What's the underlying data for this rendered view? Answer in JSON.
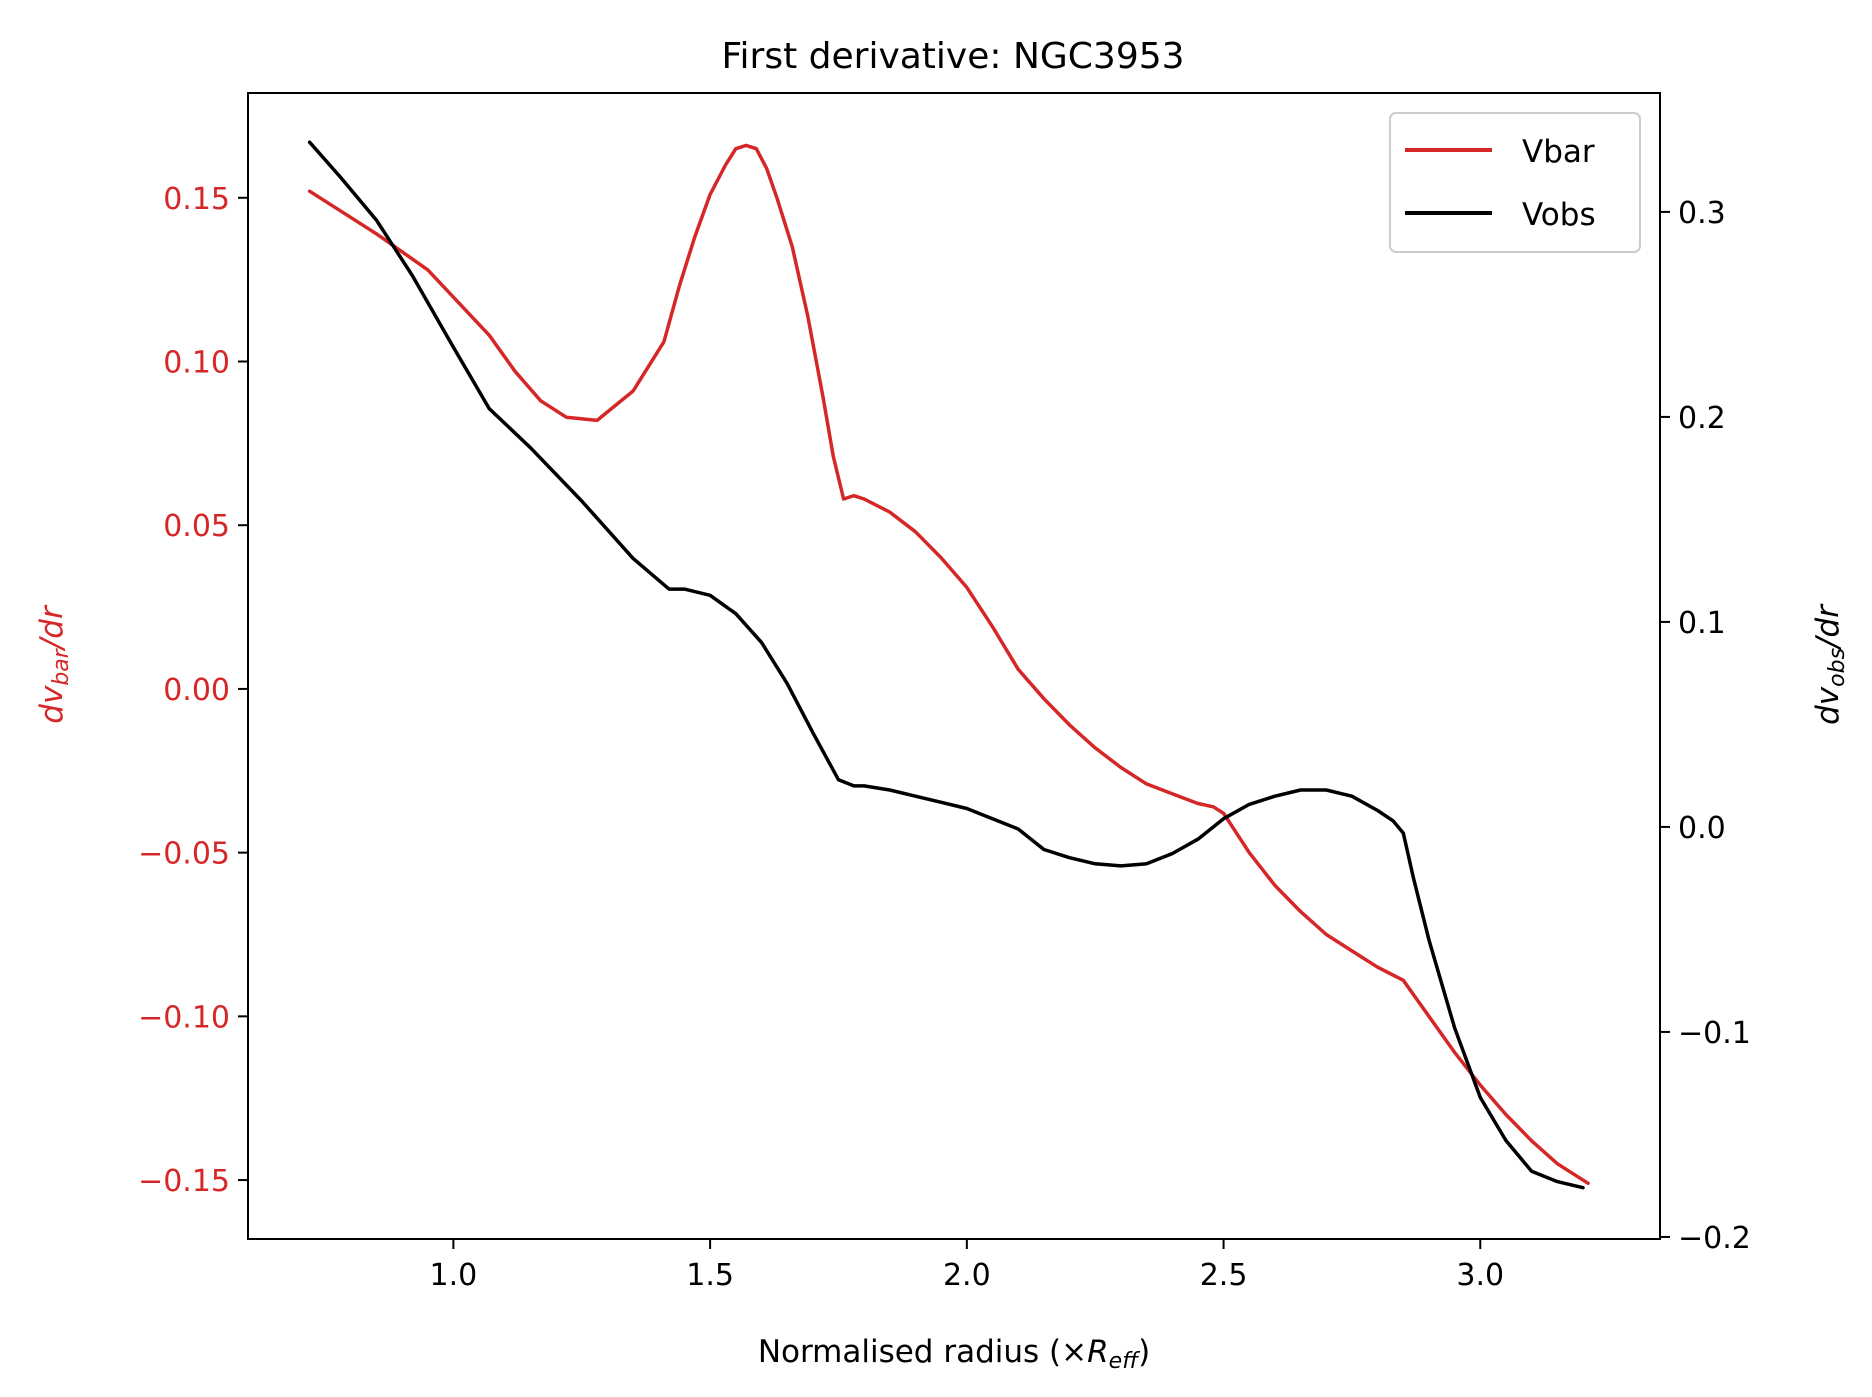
{
  "chart_data": {
    "type": "line",
    "title": "First derivative: NGC3953",
    "xlabel": {
      "main": "Normalised radius (×",
      "var": "R",
      "sub": "eff",
      "close": ")"
    },
    "ylabel_left": {
      "d": "dv",
      "sub": "bar",
      "tail": "/dr"
    },
    "ylabel_right": {
      "d": "dv",
      "sub": "obs",
      "tail": "/dr"
    },
    "xlim": [
      0.6,
      3.35
    ],
    "ylim_left": [
      -0.168,
      0.182
    ],
    "ylim_right": [
      -0.201,
      0.358
    ],
    "x_ticks": [
      1.0,
      1.5,
      2.0,
      2.5,
      3.0
    ],
    "x_tick_labels": [
      "1.0",
      "1.5",
      "2.0",
      "2.5",
      "3.0"
    ],
    "y_left_ticks": [
      0.15,
      0.1,
      0.05,
      0.0,
      -0.05,
      -0.1,
      -0.15
    ],
    "y_left_tick_labels": [
      "0.15",
      "0.10",
      "0.05",
      "0.00",
      "−0.05",
      "−0.10",
      "−0.15"
    ],
    "y_right_ticks": [
      0.3,
      0.2,
      0.1,
      0.0,
      -0.1,
      -0.2
    ],
    "y_right_tick_labels": [
      "0.3",
      "0.2",
      "0.1",
      "0.0",
      "−0.1",
      "−0.2"
    ],
    "legend_position": "top-right",
    "colors": {
      "vbar": "#d62728",
      "vobs": "#000000",
      "left_axis": "#d62728",
      "right_axis": "#000000"
    },
    "series": [
      {
        "name": "Vbar",
        "axis": "left",
        "color": "#d62728",
        "x": [
          0.72,
          0.85,
          0.95,
          1.07,
          1.12,
          1.17,
          1.22,
          1.28,
          1.35,
          1.41,
          1.44,
          1.47,
          1.5,
          1.53,
          1.55,
          1.57,
          1.59,
          1.61,
          1.63,
          1.66,
          1.69,
          1.72,
          1.74,
          1.76,
          1.78,
          1.8,
          1.85,
          1.9,
          1.95,
          2.0,
          2.05,
          2.1,
          2.15,
          2.2,
          2.25,
          2.3,
          2.35,
          2.4,
          2.45,
          2.48,
          2.5,
          2.55,
          2.6,
          2.65,
          2.7,
          2.75,
          2.8,
          2.85,
          2.9,
          2.95,
          3.0,
          3.05,
          3.1,
          3.15,
          3.21
        ],
        "y": [
          0.152,
          0.139,
          0.128,
          0.108,
          0.097,
          0.088,
          0.083,
          0.082,
          0.091,
          0.106,
          0.123,
          0.138,
          0.151,
          0.16,
          0.165,
          0.166,
          0.165,
          0.159,
          0.15,
          0.135,
          0.114,
          0.089,
          0.071,
          0.058,
          0.059,
          0.058,
          0.054,
          0.048,
          0.04,
          0.031,
          0.019,
          0.006,
          -0.003,
          -0.011,
          -0.018,
          -0.024,
          -0.029,
          -0.032,
          -0.035,
          -0.036,
          -0.038,
          -0.05,
          -0.06,
          -0.068,
          -0.075,
          -0.08,
          -0.085,
          -0.089,
          -0.1,
          -0.111,
          -0.121,
          -0.13,
          -0.138,
          -0.145,
          -0.151
        ]
      },
      {
        "name": "Vobs",
        "axis": "right",
        "color": "#000000",
        "x": [
          0.72,
          0.78,
          0.85,
          0.92,
          1.0,
          1.07,
          1.15,
          1.25,
          1.35,
          1.42,
          1.45,
          1.5,
          1.55,
          1.6,
          1.65,
          1.7,
          1.75,
          1.78,
          1.8,
          1.85,
          1.9,
          1.95,
          2.0,
          2.05,
          2.1,
          2.15,
          2.2,
          2.25,
          2.3,
          2.35,
          2.4,
          2.45,
          2.5,
          2.55,
          2.6,
          2.65,
          2.7,
          2.75,
          2.8,
          2.83,
          2.85,
          2.87,
          2.9,
          2.95,
          3.0,
          3.05,
          3.1,
          3.15,
          3.2
        ],
        "y": [
          0.334,
          0.317,
          0.296,
          0.269,
          0.234,
          0.204,
          0.185,
          0.159,
          0.131,
          0.116,
          0.116,
          0.113,
          0.104,
          0.09,
          0.07,
          0.046,
          0.023,
          0.02,
          0.02,
          0.018,
          0.015,
          0.012,
          0.009,
          0.004,
          -0.001,
          -0.011,
          -0.015,
          -0.018,
          -0.019,
          -0.018,
          -0.013,
          -0.006,
          0.004,
          0.011,
          0.015,
          0.018,
          0.018,
          0.015,
          0.008,
          0.003,
          -0.003,
          -0.025,
          -0.055,
          -0.098,
          -0.132,
          -0.153,
          -0.168,
          -0.173,
          -0.176
        ]
      }
    ]
  }
}
